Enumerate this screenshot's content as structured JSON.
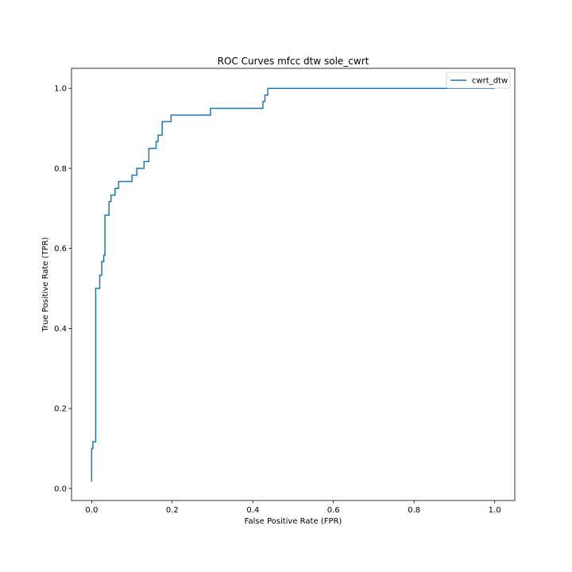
{
  "chart_data": {
    "type": "line",
    "title": "ROC Curves mfcc dtw sole_cwrt",
    "xlabel": "False Positive Rate (FPR)",
    "ylabel": "True Positive Rate (TPR)",
    "xlim": [
      -0.05,
      1.05
    ],
    "ylim": [
      -0.03,
      1.05
    ],
    "xticks": [
      "0.0",
      "0.2",
      "0.4",
      "0.6",
      "0.8",
      "1.0"
    ],
    "yticks": [
      "0.0",
      "0.2",
      "0.4",
      "0.6",
      "0.8",
      "1.0"
    ],
    "grid": false,
    "legend_position": "top-right",
    "series": [
      {
        "name": "cwrt_dtw",
        "color": "#1f77b4",
        "x": [
          0.0,
          0.0,
          0.003,
          0.003,
          0.01,
          0.01,
          0.02,
          0.02,
          0.025,
          0.025,
          0.03,
          0.03,
          0.033,
          0.033,
          0.043,
          0.043,
          0.048,
          0.048,
          0.058,
          0.058,
          0.067,
          0.067,
          0.1,
          0.1,
          0.112,
          0.112,
          0.13,
          0.13,
          0.142,
          0.142,
          0.16,
          0.16,
          0.165,
          0.165,
          0.175,
          0.175,
          0.197,
          0.197,
          0.295,
          0.295,
          0.425,
          0.425,
          0.43,
          0.43,
          0.437,
          0.437,
          1.0
        ],
        "y": [
          0.017,
          0.1,
          0.1,
          0.117,
          0.117,
          0.5,
          0.5,
          0.533,
          0.533,
          0.567,
          0.567,
          0.583,
          0.583,
          0.683,
          0.683,
          0.717,
          0.717,
          0.733,
          0.733,
          0.75,
          0.75,
          0.767,
          0.767,
          0.783,
          0.783,
          0.8,
          0.8,
          0.817,
          0.817,
          0.85,
          0.85,
          0.867,
          0.867,
          0.883,
          0.883,
          0.917,
          0.917,
          0.933,
          0.933,
          0.95,
          0.95,
          0.967,
          0.967,
          0.983,
          0.983,
          1.0,
          1.0
        ]
      }
    ]
  }
}
